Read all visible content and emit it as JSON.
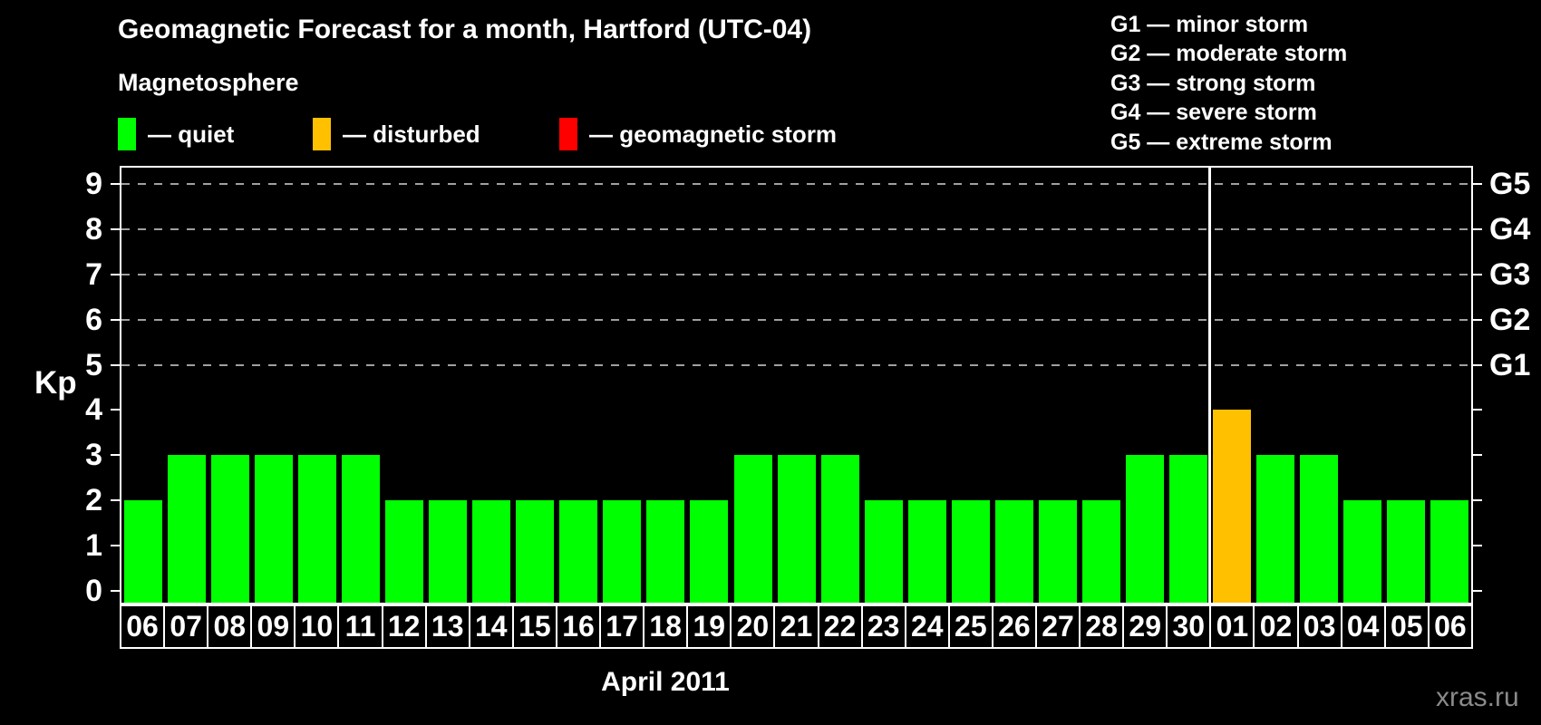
{
  "header": {
    "title": "Geomagnetic Forecast for a month, Hartford (UTC-04)",
    "subtitle": "Magnetosphere"
  },
  "legend": {
    "items": [
      {
        "name": "quiet",
        "label": "— quiet",
        "color": "#00FF00"
      },
      {
        "name": "disturbed",
        "label": "— disturbed",
        "color": "#FFC000"
      },
      {
        "name": "storm",
        "label": "— geomagnetic storm",
        "color": "#FF0000"
      }
    ]
  },
  "g_scale_legend": [
    "G1 — minor storm",
    "G2 — moderate storm",
    "G3 — strong storm",
    "G4 — severe storm",
    "G5 — extreme storm"
  ],
  "watermark": "xras.ru",
  "chart_data": {
    "type": "bar",
    "title": "Geomagnetic Forecast for a month, Hartford (UTC-04)",
    "xlabel": "April 2011",
    "ylabel": "Kp",
    "ylim": [
      -0.3,
      9.4
    ],
    "yticks": [
      0,
      1,
      2,
      3,
      4,
      5,
      6,
      7,
      8,
      9
    ],
    "gridlines_at": [
      5,
      6,
      7,
      8,
      9
    ],
    "grid": "dashed",
    "right_axis": [
      {
        "value": 5,
        "label": "G1"
      },
      {
        "value": 6,
        "label": "G2"
      },
      {
        "value": 7,
        "label": "G3"
      },
      {
        "value": 8,
        "label": "G4"
      },
      {
        "value": 9,
        "label": "G5"
      }
    ],
    "status_colors": {
      "quiet": "#00FF00",
      "disturbed": "#FFC000",
      "storm": "#FF0000"
    },
    "month_separator_before_day": "01",
    "bars": [
      {
        "day": "06",
        "kp": 2,
        "status": "quiet"
      },
      {
        "day": "07",
        "kp": 3,
        "status": "quiet"
      },
      {
        "day": "08",
        "kp": 3,
        "status": "quiet"
      },
      {
        "day": "09",
        "kp": 3,
        "status": "quiet"
      },
      {
        "day": "10",
        "kp": 3,
        "status": "quiet"
      },
      {
        "day": "11",
        "kp": 3,
        "status": "quiet"
      },
      {
        "day": "12",
        "kp": 2,
        "status": "quiet"
      },
      {
        "day": "13",
        "kp": 2,
        "status": "quiet"
      },
      {
        "day": "14",
        "kp": 2,
        "status": "quiet"
      },
      {
        "day": "15",
        "kp": 2,
        "status": "quiet"
      },
      {
        "day": "16",
        "kp": 2,
        "status": "quiet"
      },
      {
        "day": "17",
        "kp": 2,
        "status": "quiet"
      },
      {
        "day": "18",
        "kp": 2,
        "status": "quiet"
      },
      {
        "day": "19",
        "kp": 2,
        "status": "quiet"
      },
      {
        "day": "20",
        "kp": 3,
        "status": "quiet"
      },
      {
        "day": "21",
        "kp": 3,
        "status": "quiet"
      },
      {
        "day": "22",
        "kp": 3,
        "status": "quiet"
      },
      {
        "day": "23",
        "kp": 2,
        "status": "quiet"
      },
      {
        "day": "24",
        "kp": 2,
        "status": "quiet"
      },
      {
        "day": "25",
        "kp": 2,
        "status": "quiet"
      },
      {
        "day": "26",
        "kp": 2,
        "status": "quiet"
      },
      {
        "day": "27",
        "kp": 2,
        "status": "quiet"
      },
      {
        "day": "28",
        "kp": 2,
        "status": "quiet"
      },
      {
        "day": "29",
        "kp": 3,
        "status": "quiet"
      },
      {
        "day": "30",
        "kp": 3,
        "status": "quiet"
      },
      {
        "day": "01",
        "kp": 4,
        "status": "disturbed"
      },
      {
        "day": "02",
        "kp": 3,
        "status": "quiet"
      },
      {
        "day": "03",
        "kp": 3,
        "status": "quiet"
      },
      {
        "day": "04",
        "kp": 2,
        "status": "quiet"
      },
      {
        "day": "05",
        "kp": 2,
        "status": "quiet"
      },
      {
        "day": "06",
        "kp": 2,
        "status": "quiet"
      }
    ]
  }
}
